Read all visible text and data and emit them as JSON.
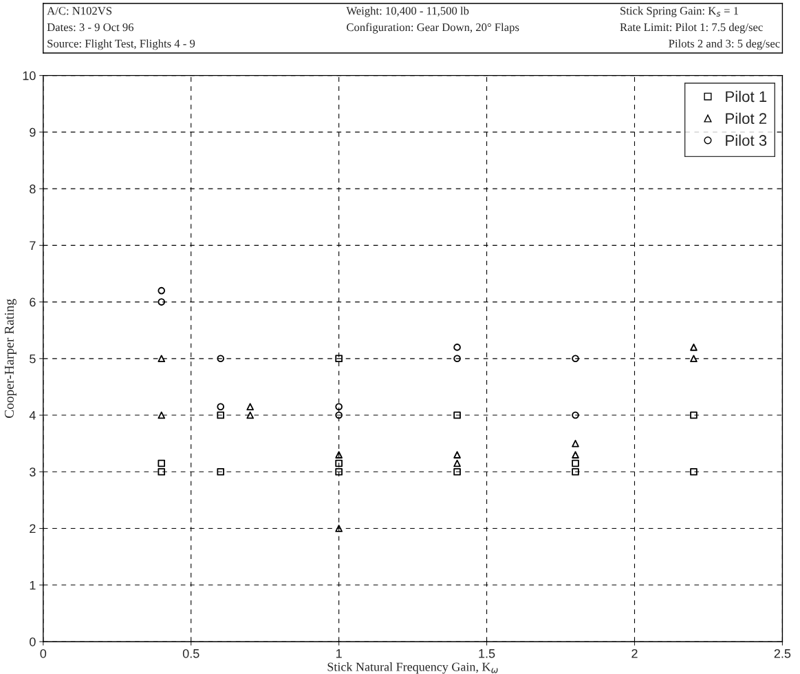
{
  "chart_data": {
    "type": "scatter",
    "xlabel": "Stick Natural Frequency Gain, K$_{ω}$",
    "ylabel": "Cooper-Harper Rating",
    "annotations": [
      "A/C: N102VS",
      "Dates: 3 - 9 Oct 96",
      "Source: Flight Test, Flights 4 - 9",
      "Weight: 10,400 - 11,500 lb",
      "Configuration: Gear Down, 20° Flaps",
      "Stick Spring Gain: K$_{s}$ = 1",
      "Rate Limit: Pilot 1: 7.5 deg/sec",
      "Pilots 2 and 3: 5 deg/sec"
    ],
    "xlim": [
      0,
      2.5
    ],
    "xticks": [
      0,
      0.5,
      1,
      1.5,
      2,
      2.5
    ],
    "ylim": [
      0,
      10
    ],
    "yticks": [
      0,
      1,
      2,
      3,
      4,
      5,
      6,
      7,
      8,
      9,
      10
    ],
    "grid": true,
    "legend": "top right",
    "series": [
      {
        "name": "Pilot 1",
        "color": "#000000",
        "marker": "square",
        "x": [
          0.4,
          0.4,
          0.6,
          0.6,
          1,
          1,
          1,
          1.4,
          1.4,
          1.8,
          1.8,
          2.2,
          2.2
        ],
        "values": [
          3,
          3.15,
          3,
          4,
          3,
          3.15,
          5,
          3,
          4,
          3,
          3.15,
          3,
          4
        ]
      },
      {
        "name": "Pilot 2",
        "color": "#000000",
        "marker": "triangle",
        "x": [
          0.4,
          0.4,
          0.7,
          0.7,
          1,
          1,
          1.4,
          1.4,
          1.8,
          1.8,
          2.2,
          2.2
        ],
        "values": [
          4,
          5,
          4,
          4.15,
          2,
          3.3,
          3.15,
          3.3,
          3.3,
          3.5,
          5,
          5.2
        ]
      },
      {
        "name": "Pilot 3",
        "color": "#000000",
        "marker": "circle",
        "x": [
          0.4,
          0.4,
          0.6,
          0.6,
          1,
          1,
          1.4,
          1.4,
          1.8,
          1.8
        ],
        "values": [
          6,
          6.2,
          4.15,
          5,
          4,
          4.15,
          5,
          5.2,
          4,
          5
        ]
      }
    ]
  }
}
